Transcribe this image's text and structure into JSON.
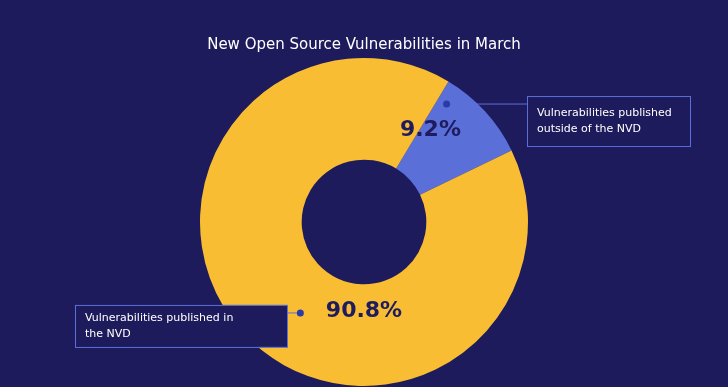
{
  "chart_data": {
    "type": "doughnut",
    "title": "New Open Source Vulnerabilities in March",
    "categories": [
      "Vulnerabilities published outside of the NVD",
      "Vulnerabilities published in the NVD"
    ],
    "values": [
      9.2,
      90.8
    ],
    "value_labels": [
      "9.2%",
      "90.8%"
    ],
    "colors": [
      "#5b6fd8",
      "#f8bd32"
    ],
    "data_labels": true
  }
}
